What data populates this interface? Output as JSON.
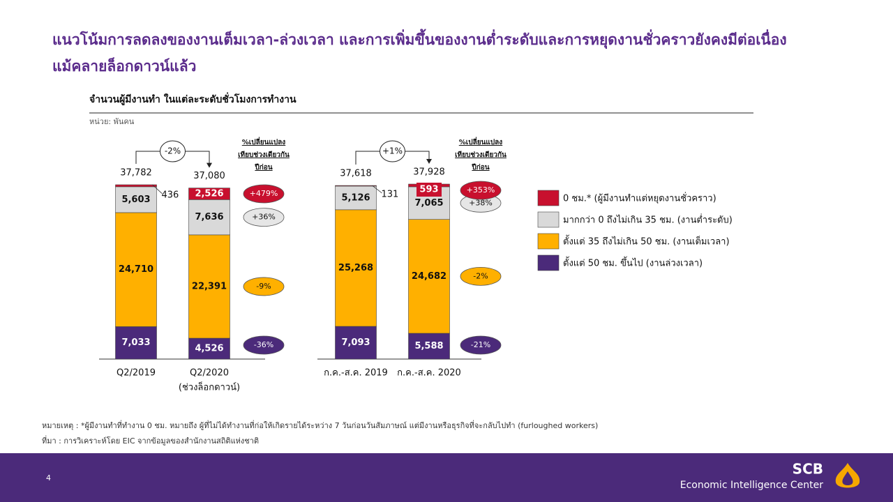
{
  "slide": {
    "title": [
      "แนวโน้มการลดลงของงานเต็มเวลา-ล่วงเวลา และการเพิ่มขึ้นของงานต่ำระดับและการหยุดงานชั่วคราวยังคงมีต่อเนื่อง",
      "แม้คลายล็อกดาวน์แล้ว"
    ],
    "subtitle": "จำนวนผู้มีงานทำ ในแต่ละระดับชั่วโมงการทำงาน",
    "unit": "หน่วย: พันคน",
    "notes": [
      "หมายเหตุ : *ผู้มีงานทำที่ทำงาน 0 ชม. หมายถึง ผู้ที่ไม่ได้ทำงานที่ก่อให้เกิดรายได้ระหว่าง 7 วันก่อนวันสัมภาษณ์ แต่มีงานหรือธุรกิจที่จะกลับไปทำ (furloughed workers)",
      "ที่มา : การวิเคราะห์โดย EIC จากข้อมูลของสำนักงานสถิติแห่งชาติ"
    ],
    "page_number": 4,
    "brand": "SCB",
    "brand_unit": "Economic Intelligence Center"
  },
  "chart_data": [
    {
      "type": "bar",
      "stacked": true,
      "categories": [
        "Q2/2019",
        "Q2/2020"
      ],
      "category_sublabels": [
        null,
        "(ช่วงล็อกดาวน์)"
      ],
      "change_header": [
        "%เปลี่ยนแปลง",
        "เทียบช่วงเดียวกัน",
        "ปีก่อน"
      ],
      "totals": [
        37782,
        37080
      ],
      "total_labels": [
        "37,782",
        "37,080"
      ],
      "total_change": -2,
      "total_change_label": "-2%",
      "series": [
        {
          "name": "ตั้งแต่ 50 ชม. ขึ้นไป (งานล่วงเวลา)",
          "color": "#4b2a7a",
          "values": [
            7033,
            4526
          ],
          "value_labels": [
            "7,033",
            "4,526"
          ],
          "change": -36,
          "change_label": "-36%"
        },
        {
          "name": "ตั้งแต่ 35 ถึงไม่เกิน 50 ชม. (งานเต็มเวลา)",
          "color": "#ffb000",
          "values": [
            24710,
            22391
          ],
          "value_labels": [
            "24,710",
            "22,391"
          ],
          "change": -9,
          "change_label": "-9%"
        },
        {
          "name": "มากกว่า 0 ถึงไม่เกิน 35 ชม. (งานต่ำระดับ)",
          "color": "#d9d9d9",
          "values": [
            5603,
            7636
          ],
          "value_labels": [
            "5,603",
            "7,636"
          ],
          "change": 36,
          "change_label": "+36%"
        },
        {
          "name": "0 ชม.* (ผู้มีงานทำแต่หยุดงานชั่วคราว)",
          "color": "#c8102e",
          "values": [
            436,
            2526
          ],
          "value_labels": [
            436,
            "2,526"
          ],
          "change": 479,
          "change_label": "+479%"
        }
      ]
    },
    {
      "type": "bar",
      "stacked": true,
      "categories": [
        "ก.ค.-ส.ค. 2019",
        "ก.ค.-ส.ค. 2020"
      ],
      "change_header": [
        "%เปลี่ยนแปลง",
        "เทียบช่วงเดียวกัน",
        "ปีก่อน"
      ],
      "totals": [
        37618,
        37928
      ],
      "total_labels": [
        "37,618",
        "37,928"
      ],
      "total_change": 1,
      "total_change_label": "+1%",
      "series": [
        {
          "color": "#4b2a7a",
          "values": [
            7093,
            5588
          ],
          "value_labels": [
            "7,093",
            "5,588"
          ],
          "change": -21,
          "change_label": "-21%"
        },
        {
          "color": "#ffb000",
          "values": [
            25268,
            24682
          ],
          "value_labels": [
            "25,268",
            "24,682"
          ],
          "change": -2,
          "change_label": "-2%"
        },
        {
          "color": "#d9d9d9",
          "values": [
            5126,
            7065
          ],
          "value_labels": [
            "5,126",
            "7,065"
          ],
          "change": 38,
          "change_label": "+38%"
        },
        {
          "color": "#c8102e",
          "values": [
            131,
            593
          ],
          "value_labels": [
            131,
            593
          ],
          "change": 353,
          "change_label": "+353%"
        }
      ]
    }
  ]
}
